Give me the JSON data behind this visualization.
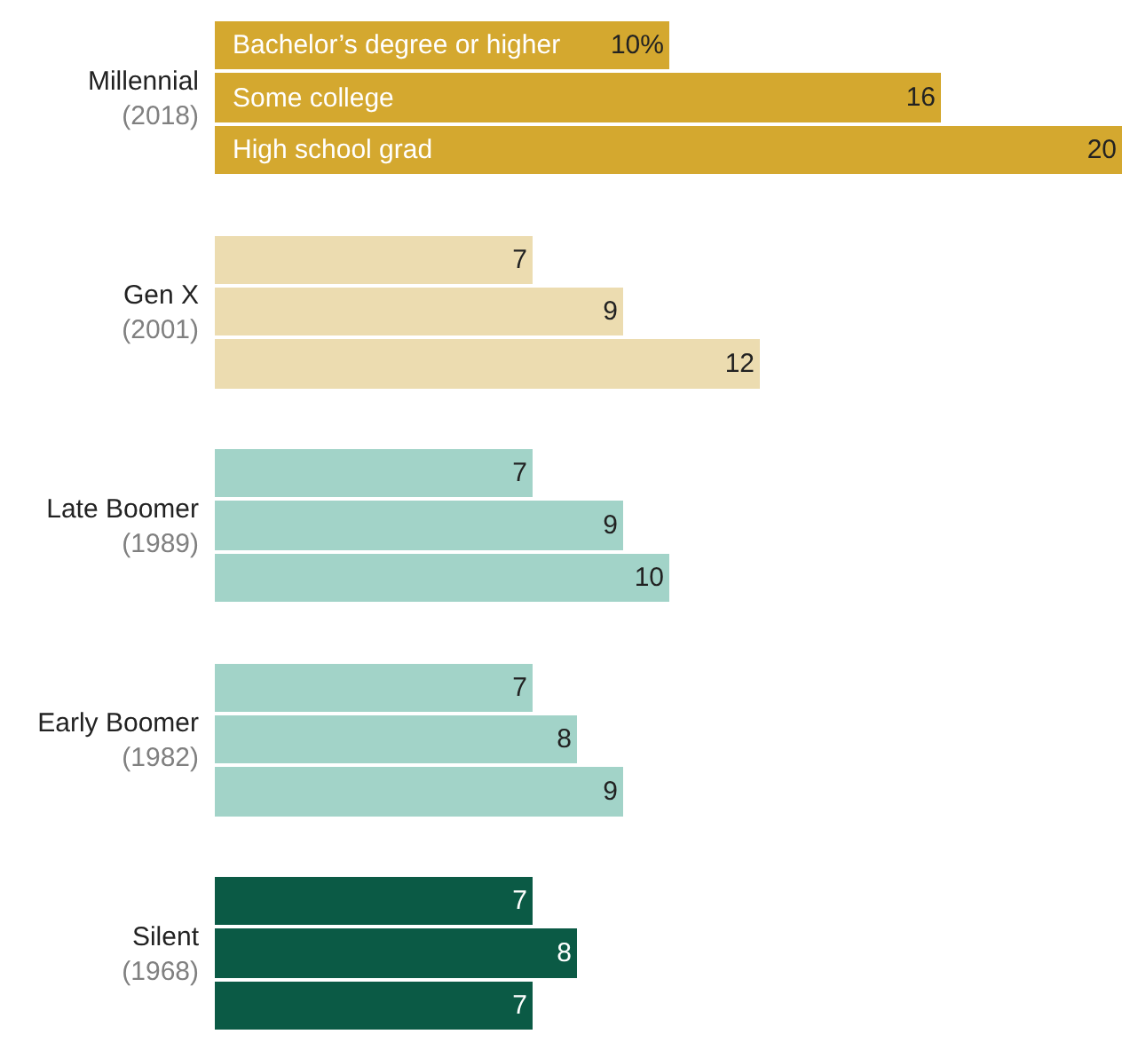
{
  "chart_data": {
    "type": "bar",
    "orientation": "horizontal",
    "categories": [
      "Millennial (2018)",
      "Gen X (2001)",
      "Late Boomer (1989)",
      "Early Boomer (1982)",
      "Silent (1968)"
    ],
    "series": [
      {
        "name": "Bachelor’s degree or higher",
        "colors": [
          "#d4a82f",
          "#ecdcb0",
          "#a2d3c8",
          "#a2d3c8",
          "#0b5a45"
        ],
        "values": [
          10,
          7,
          7,
          7,
          7
        ],
        "value_labels": [
          "10%",
          "7",
          "7",
          "7",
          "7"
        ]
      },
      {
        "name": "Some college",
        "colors": [
          "#d4a82f",
          "#ecdcb0",
          "#a2d3c8",
          "#a2d3c8",
          "#0b5a45"
        ],
        "values": [
          16,
          9,
          9,
          8,
          8
        ],
        "value_labels": [
          "16",
          "9",
          "9",
          "8",
          "8"
        ]
      },
      {
        "name": "High school grad",
        "colors": [
          "#d4a82f",
          "#ecdcb0",
          "#a2d3c8",
          "#a2d3c8",
          "#0b5a45"
        ],
        "values": [
          20,
          12,
          10,
          9,
          7
        ],
        "value_labels": [
          "20",
          "12",
          "10",
          "9",
          "7"
        ]
      }
    ],
    "xlim": [
      0,
      20
    ],
    "tick_labels": "y",
    "grid": false
  }
}
